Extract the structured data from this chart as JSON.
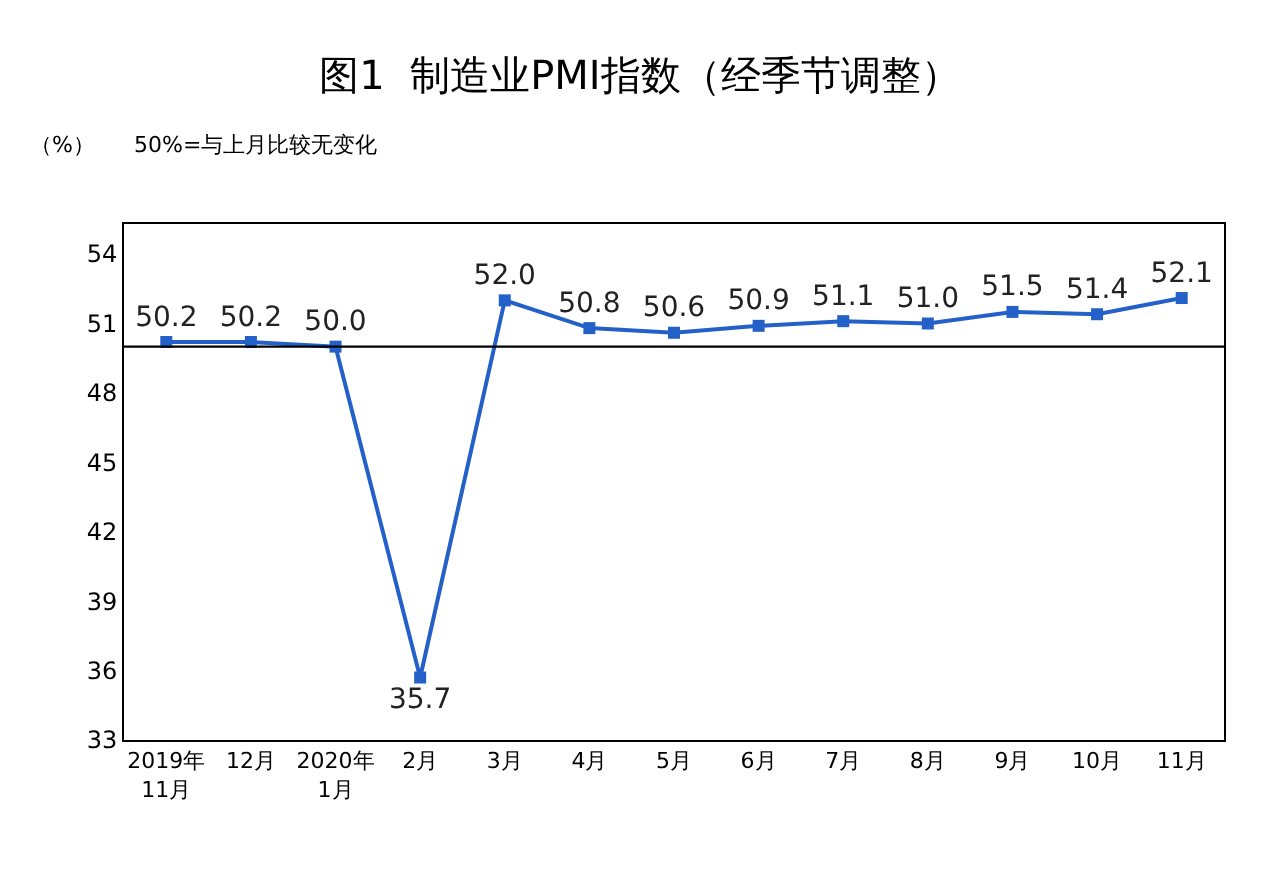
{
  "chart_data": {
    "type": "line",
    "title": "图1  制造业PMI指数（经季节调整）",
    "annotations": [
      "（%）",
      "50%=与上月比较无变化"
    ],
    "categories": [
      "2019年\n11月",
      "12月",
      "2020年\n1月",
      "2月",
      "3月",
      "4月",
      "5月",
      "6月",
      "7月",
      "8月",
      "9月",
      "10月",
      "11月"
    ],
    "values": [
      50.2,
      50.2,
      50.0,
      35.7,
      52.0,
      50.8,
      50.6,
      50.9,
      51.1,
      51.0,
      51.5,
      51.4,
      52.1
    ],
    "value_labels": [
      "50.2",
      "50.2",
      "50.0",
      "35.7",
      "52.0",
      "50.8",
      "50.6",
      "50.9",
      "51.1",
      "51.0",
      "51.5",
      "51.4",
      "52.1"
    ],
    "color": "#2361c8",
    "marker": "square",
    "line_style": "solid",
    "ylim": [
      33,
      55.3
    ],
    "yticks": [
      33,
      36,
      39,
      42,
      45,
      48,
      51,
      54
    ],
    "grid": false,
    "legend": false,
    "ref_lines": [
      {
        "axis": "y",
        "value": 50,
        "color": "#000000"
      }
    ]
  }
}
